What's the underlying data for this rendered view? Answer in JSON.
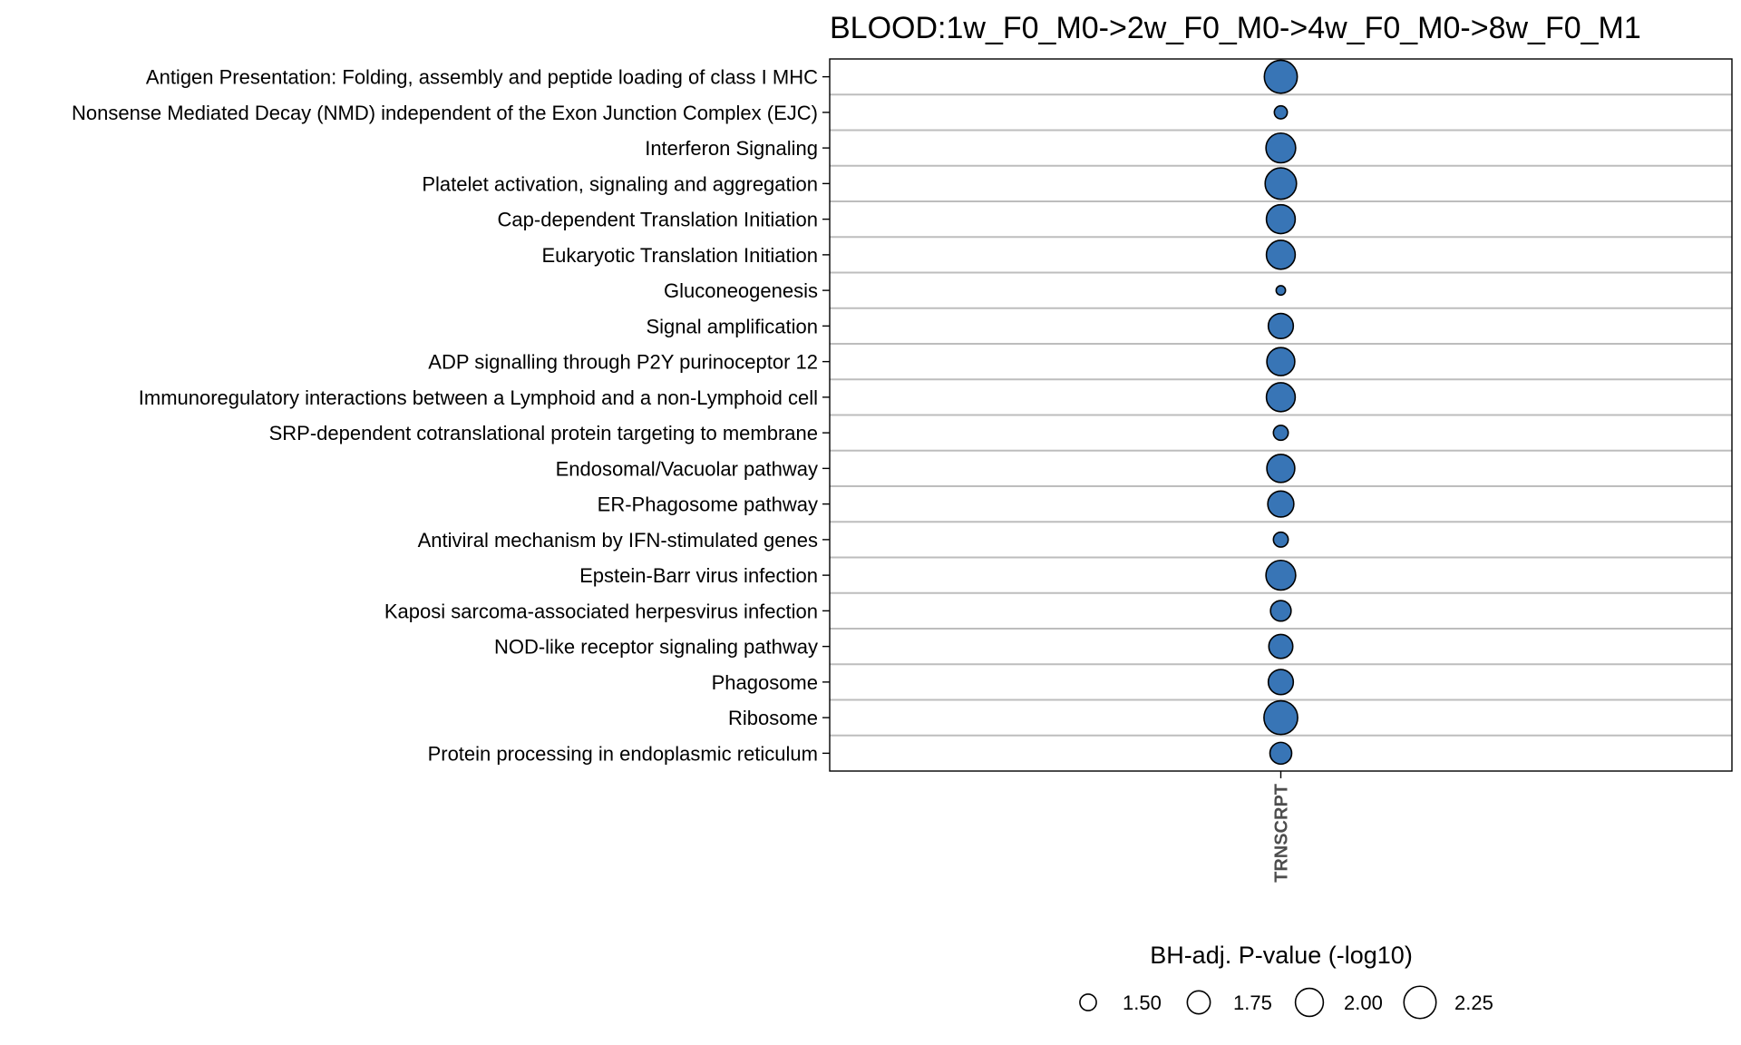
{
  "chart_data": {
    "type": "scatter",
    "title": "BLOOD:1w_F0_M0->2w_F0_M0->4w_F0_M0->8w_F0_M1",
    "x_categories": [
      "TRNSCRPT"
    ],
    "y_categories": [
      "Antigen Presentation: Folding, assembly and peptide loading of class I MHC",
      "Nonsense Mediated Decay (NMD) independent of the Exon Junction Complex (EJC)",
      "Interferon Signaling",
      "Platelet activation, signaling and aggregation",
      "Cap-dependent Translation Initiation",
      "Eukaryotic Translation Initiation",
      "Gluconeogenesis",
      "Signal amplification",
      "ADP signalling through P2Y purinoceptor 12",
      "Immunoregulatory interactions between a Lymphoid and a non-Lymphoid cell",
      "SRP-dependent cotranslational protein targeting to membrane",
      "Endosomal/Vacuolar pathway",
      "ER-Phagosome pathway",
      "Antiviral mechanism by IFN-stimulated genes",
      "Epstein-Barr virus infection",
      "Kaposi sarcoma-associated herpesvirus infection",
      "NOD-like receptor signaling pathway",
      "Phagosome",
      "Ribosome",
      "Protein processing in endoplasmic reticulum"
    ],
    "points": [
      {
        "x": "TRNSCRPT",
        "y": "Antigen Presentation: Folding, assembly and peptide loading of class I MHC",
        "size_value": 2.3
      },
      {
        "x": "TRNSCRPT",
        "y": "Nonsense Mediated Decay (NMD) independent of the Exon Junction Complex (EJC)",
        "size_value": 1.4
      },
      {
        "x": "TRNSCRPT",
        "y": "Interferon Signaling",
        "size_value": 2.1
      },
      {
        "x": "TRNSCRPT",
        "y": "Platelet activation, signaling and aggregation",
        "size_value": 2.2
      },
      {
        "x": "TRNSCRPT",
        "y": "Cap-dependent Translation Initiation",
        "size_value": 2.05
      },
      {
        "x": "TRNSCRPT",
        "y": "Eukaryotic Translation Initiation",
        "size_value": 2.05
      },
      {
        "x": "TRNSCRPT",
        "y": "Gluconeogenesis",
        "size_value": 1.32
      },
      {
        "x": "TRNSCRPT",
        "y": "Signal amplification",
        "size_value": 1.85
      },
      {
        "x": "TRNSCRPT",
        "y": "ADP signalling through P2Y purinoceptor 12",
        "size_value": 2.0
      },
      {
        "x": "TRNSCRPT",
        "y": "Immunoregulatory interactions between a Lymphoid and a non-Lymphoid cell",
        "size_value": 2.05
      },
      {
        "x": "TRNSCRPT",
        "y": "SRP-dependent cotranslational protein targeting to membrane",
        "size_value": 1.45
      },
      {
        "x": "TRNSCRPT",
        "y": "Endosomal/Vacuolar pathway",
        "size_value": 2.0
      },
      {
        "x": "TRNSCRPT",
        "y": "ER-Phagosome pathway",
        "size_value": 1.9
      },
      {
        "x": "TRNSCRPT",
        "y": "Antiviral mechanism by IFN-stimulated genes",
        "size_value": 1.45
      },
      {
        "x": "TRNSCRPT",
        "y": "Epstein-Barr virus infection",
        "size_value": 2.1
      },
      {
        "x": "TRNSCRPT",
        "y": "Kaposi sarcoma-associated herpesvirus infection",
        "size_value": 1.65
      },
      {
        "x": "TRNSCRPT",
        "y": "NOD-like receptor signaling pathway",
        "size_value": 1.8
      },
      {
        "x": "TRNSCRPT",
        "y": "Phagosome",
        "size_value": 1.85
      },
      {
        "x": "TRNSCRPT",
        "y": "Ribosome",
        "size_value": 2.35
      },
      {
        "x": "TRNSCRPT",
        "y": "Protein processing in endoplasmic reticulum",
        "size_value": 1.7
      }
    ],
    "point_color": "#3875b6",
    "point_edge_color": "#000000",
    "grid_color": "#bdbdbd",
    "legend": {
      "title": "BH-adj. P-value (-log10)",
      "values": [
        1.5,
        1.75,
        2.0,
        2.25
      ],
      "labels": [
        "1.50",
        "1.75",
        "2.00",
        "2.25"
      ],
      "placement": "bottom"
    }
  }
}
